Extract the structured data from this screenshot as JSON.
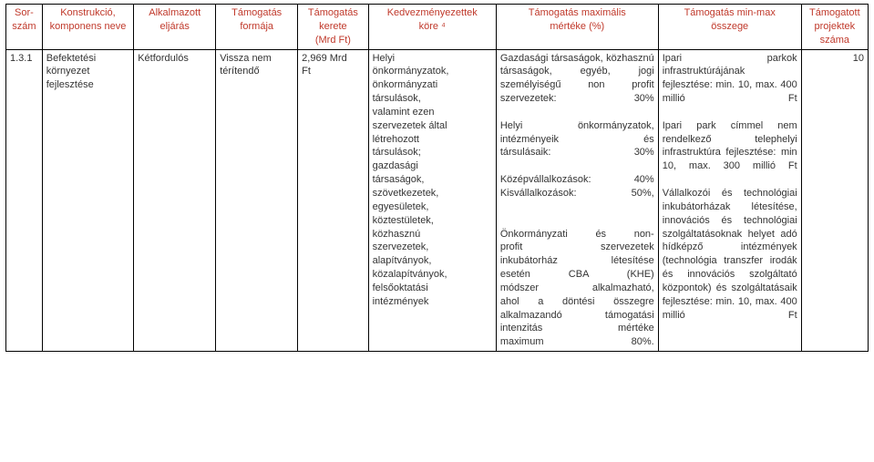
{
  "table": {
    "columns": [
      {
        "key": "sorszam",
        "title": "Sor-\nszám"
      },
      {
        "key": "konstrukcio",
        "title": "Konstrukció,\nkomponens neve"
      },
      {
        "key": "eljaras",
        "title": "Alkalmazott\neljárás"
      },
      {
        "key": "forma",
        "title": "Támogatás\nformája"
      },
      {
        "key": "keret",
        "title": "Támogatás\nkerete\n(Mrd Ft)"
      },
      {
        "key": "kedv",
        "title": "Kedvezményezettek\nköre ⁴"
      },
      {
        "key": "mertek",
        "title": "Támogatás maximális\nmértéke (%)"
      },
      {
        "key": "minmax",
        "title": "Támogatás min-max\nösszege"
      },
      {
        "key": "proj",
        "title": "Támogatott\nprojektek\nszáma"
      }
    ],
    "row": {
      "sorszam": "1.3.1",
      "konstrukcio": "Befektetési\nkörnyezet\nfejlesztése",
      "eljaras": "Kétfordulós",
      "forma": "Vissza nem\ntérítendő",
      "keret": "2,969 Mrd\nFt",
      "kedv": "Helyi\nönkormányzatok,\nönkormányzati\ntársulások,\nvalamint ezen\nszervezetek által\nlétrehozott\ntársulások;\ngazdasági\ntársaságok,\nszövetkezetek,\negyesületek,\nköztestületek,\nközhasznú\nszervezetek,\nalapítványok,\nközalapítványok,\nfelsőoktatási\nintézmények",
      "mertek": "Gazdasági társaságok, közhasznú társaságok, egyéb, jogi személyiségű non profit szervezetek: 30%\n\nHelyi önkormányzatok,\nintézményeik és\ntársulásaik: 30%\n\nKözépvállalkozások: 40%\nKisvállalkozások: 50%,\n\n\nÖnkormányzati és non-\nprofit szervezetek\ninkubátorház létesítése\nesetén CBA (KHE)\nmódszer alkalmazható,\nahol a döntési összegre\nalkalmazandó támogatási\nintenzitás mértéke\nmaximum 80%.",
      "minmax": "Ipari parkok infrastruktúrájának fejlesztése: min. 10, max. 400 millió Ft\n\nIpari park címmel nem rendelkező telephelyi infrastruktúra fejlesztése: min 10, max. 300 millió Ft\n\nVállalkozói és technológiai inkubátorházak létesítése, innovációs és technológiai szolgáltatásoknak helyet adó hídképző intézmények (technológia transzfer irodák és innovációs szolgáltató központok) és szolgáltatásaik fejlesztése: min. 10, max. 400 millió Ft",
      "proj": "10"
    },
    "header_color": "#c0392b",
    "body_color": "#333333",
    "border_color": "#000000",
    "font_family": "Verdana",
    "font_size_pt": 8
  }
}
